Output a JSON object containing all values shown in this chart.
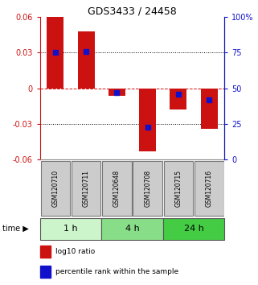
{
  "title": "GDS3433 / 24458",
  "samples": [
    "GSM120710",
    "GSM120711",
    "GSM120648",
    "GSM120708",
    "GSM120715",
    "GSM120716"
  ],
  "log10_ratio": [
    0.06,
    0.048,
    -0.006,
    -0.053,
    -0.018,
    -0.034
  ],
  "percentile_rank": [
    75,
    76,
    47,
    23,
    46,
    42
  ],
  "ylim_left": [
    -0.06,
    0.06
  ],
  "ylim_right": [
    0,
    100
  ],
  "yticks_left": [
    -0.06,
    -0.03,
    0,
    0.03,
    0.06
  ],
  "yticks_right": [
    0,
    25,
    50,
    75,
    100
  ],
  "ytick_labels_left": [
    "-0.06",
    "-0.03",
    "0",
    "0.03",
    "0.06"
  ],
  "ytick_labels_right": [
    "0",
    "25",
    "50",
    "75",
    "100%"
  ],
  "hlines_dotted": [
    0.03,
    -0.03
  ],
  "hline_dashed_red": 0,
  "time_groups": [
    {
      "label": "1 h",
      "samples": [
        0,
        1
      ],
      "color": "#ccf5cc"
    },
    {
      "label": "4 h",
      "samples": [
        2,
        3
      ],
      "color": "#88dd88"
    },
    {
      "label": "24 h",
      "samples": [
        4,
        5
      ],
      "color": "#44cc44"
    }
  ],
  "bar_color_red": "#cc1111",
  "bar_color_blue": "#1111cc",
  "bar_width": 0.55,
  "blue_marker_size": 4,
  "background_color": "#ffffff",
  "sample_box_color": "#cccccc",
  "sample_box_dark": "#777777",
  "legend_red_label": "log10 ratio",
  "legend_blue_label": "percentile rank within the sample",
  "time_label": "time"
}
